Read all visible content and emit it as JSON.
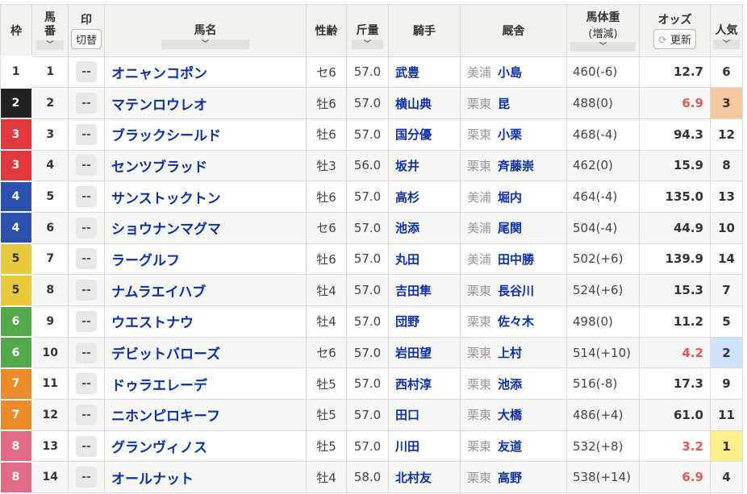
{
  "header": {
    "waku": "枠",
    "umaban": "馬番",
    "mark": "印",
    "mark_toggle": "切替",
    "name": "馬名",
    "sexage": "性齢",
    "weight": "斤量",
    "jockey": "騎手",
    "stable": "厩舎",
    "body_weight": "馬体重",
    "body_weight_sub": "(増減)",
    "odds": "オッズ",
    "odds_refresh": "更新",
    "popularity": "人気",
    "sort_glyph": "﹀"
  },
  "waku_colors": {
    "1": "#ffffff",
    "2": "#222222",
    "3": "#e0393c",
    "4": "#2b51ae",
    "5": "#e8c93a",
    "6": "#52a94a",
    "7": "#ec8b28",
    "8": "#e26a84"
  },
  "popularity_colors": {
    "1": "#fdee88",
    "2": "#cfe0fb",
    "3": "#f4c9a0"
  },
  "low_odds_color": "#e05a5a",
  "rows": [
    {
      "waku": "1",
      "umaban": "1",
      "mark": "--",
      "name": "オニャンコポン",
      "sexage": "セ6",
      "weight": "57.0",
      "jockey": "武豊",
      "region": "美浦",
      "trainer": "小島",
      "body": "460(-6)",
      "odds": "12.7",
      "pop": "6"
    },
    {
      "waku": "2",
      "umaban": "2",
      "mark": "--",
      "name": "マテンロウレオ",
      "sexage": "牡6",
      "weight": "57.0",
      "jockey": "横山典",
      "region": "栗東",
      "trainer": "昆",
      "body": "488(0)",
      "odds": "6.9",
      "pop": "3"
    },
    {
      "waku": "3",
      "umaban": "3",
      "mark": "--",
      "name": "ブラックシールド",
      "sexage": "牡6",
      "weight": "57.0",
      "jockey": "国分優",
      "region": "栗東",
      "trainer": "小栗",
      "body": "468(-4)",
      "odds": "94.3",
      "pop": "12"
    },
    {
      "waku": "3",
      "umaban": "4",
      "mark": "--",
      "name": "センツブラッド",
      "sexage": "牡3",
      "weight": "56.0",
      "jockey": "坂井",
      "region": "栗東",
      "trainer": "斉藤崇",
      "body": "462(0)",
      "odds": "15.9",
      "pop": "8"
    },
    {
      "waku": "4",
      "umaban": "5",
      "mark": "--",
      "name": "サンストックトン",
      "sexage": "牡6",
      "weight": "57.0",
      "jockey": "高杉",
      "region": "美浦",
      "trainer": "堀内",
      "body": "464(-4)",
      "odds": "135.0",
      "pop": "13"
    },
    {
      "waku": "4",
      "umaban": "6",
      "mark": "--",
      "name": "ショウナンマグマ",
      "sexage": "セ6",
      "weight": "57.0",
      "jockey": "池添",
      "region": "美浦",
      "trainer": "尾関",
      "body": "504(-4)",
      "odds": "44.9",
      "pop": "10"
    },
    {
      "waku": "5",
      "umaban": "7",
      "mark": "--",
      "name": "ラーグルフ",
      "sexage": "牡6",
      "weight": "57.0",
      "jockey": "丸田",
      "region": "美浦",
      "trainer": "田中勝",
      "body": "502(+6)",
      "odds": "139.9",
      "pop": "14"
    },
    {
      "waku": "5",
      "umaban": "8",
      "mark": "--",
      "name": "ナムラエイハブ",
      "sexage": "牡4",
      "weight": "57.0",
      "jockey": "吉田隼",
      "region": "栗東",
      "trainer": "長谷川",
      "body": "524(+6)",
      "odds": "15.3",
      "pop": "7"
    },
    {
      "waku": "6",
      "umaban": "9",
      "mark": "--",
      "name": "ウエストナウ",
      "sexage": "牡4",
      "weight": "57.0",
      "jockey": "団野",
      "region": "栗東",
      "trainer": "佐々木",
      "body": "498(0)",
      "odds": "11.2",
      "pop": "5"
    },
    {
      "waku": "6",
      "umaban": "10",
      "mark": "--",
      "name": "デビットバローズ",
      "sexage": "セ6",
      "weight": "57.0",
      "jockey": "岩田望",
      "region": "栗東",
      "trainer": "上村",
      "body": "514(+10)",
      "odds": "4.2",
      "pop": "2"
    },
    {
      "waku": "7",
      "umaban": "11",
      "mark": "--",
      "name": "ドゥラエレーデ",
      "sexage": "牡5",
      "weight": "57.0",
      "jockey": "西村淳",
      "region": "栗東",
      "trainer": "池添",
      "body": "516(-8)",
      "odds": "17.3",
      "pop": "9"
    },
    {
      "waku": "7",
      "umaban": "12",
      "mark": "--",
      "name": "ニホンピロキーフ",
      "sexage": "牡5",
      "weight": "57.0",
      "jockey": "田口",
      "region": "栗東",
      "trainer": "大橋",
      "body": "486(+4)",
      "odds": "61.0",
      "pop": "11"
    },
    {
      "waku": "8",
      "umaban": "13",
      "mark": "--",
      "name": "グランヴィノス",
      "sexage": "牡5",
      "weight": "57.0",
      "jockey": "川田",
      "region": "栗東",
      "trainer": "友道",
      "body": "532(+8)",
      "odds": "3.2",
      "pop": "1"
    },
    {
      "waku": "8",
      "umaban": "14",
      "mark": "--",
      "name": "オールナット",
      "sexage": "牡4",
      "weight": "58.0",
      "jockey": "北村友",
      "region": "栗東",
      "trainer": "高野",
      "body": "538(+14)",
      "odds": "6.9",
      "pop": "4"
    }
  ]
}
